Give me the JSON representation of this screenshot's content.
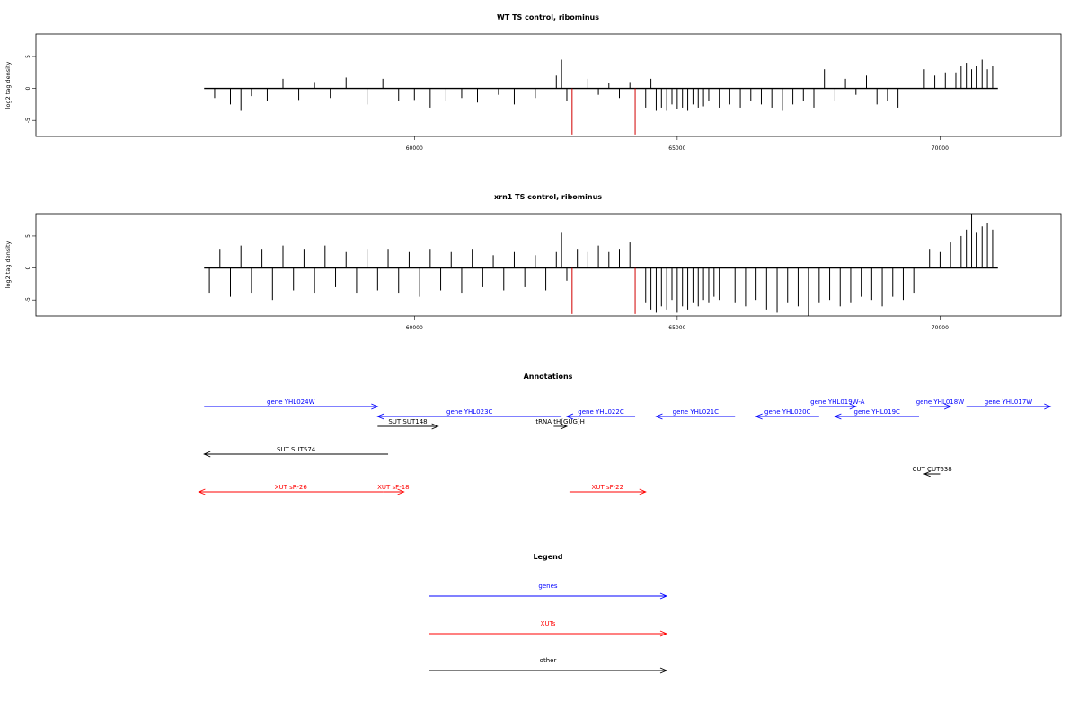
{
  "chart_data": [
    {
      "type": "bar",
      "title": "WT TS control, ribominus",
      "xlabel": "",
      "ylabel": "log2 tag density",
      "xlim": [
        52800,
        72300
      ],
      "ylim": [
        -7.5,
        8.5
      ],
      "xticks": [
        60000,
        65000,
        70000
      ],
      "yticks": [
        5,
        0,
        -5
      ],
      "ytick_labels": [
        "5",
        "0",
        "-5"
      ],
      "data_range": [
        56000,
        71100
      ],
      "marker_positions": [
        63000,
        64200
      ],
      "marker_color": "#d00000",
      "marker_ymin": -7.2,
      "series": {
        "positions": [
          56200,
          56500,
          56700,
          56900,
          57200,
          57500,
          57800,
          58100,
          58400,
          58700,
          59100,
          59400,
          59700,
          60000,
          60300,
          60600,
          60900,
          61200,
          61600,
          61900,
          62300,
          62700,
          62800,
          62900,
          63300,
          63500,
          63700,
          63900,
          64100,
          64400,
          64500,
          64600,
          64700,
          64800,
          64900,
          65000,
          65100,
          65200,
          65300,
          65400,
          65500,
          65600,
          65800,
          66000,
          66200,
          66400,
          66600,
          66800,
          67000,
          67200,
          67400,
          67600,
          67800,
          68000,
          68200,
          68400,
          68600,
          68800,
          69000,
          69200,
          69700,
          69900,
          70100,
          70300,
          70400,
          70500,
          70600,
          70700,
          70800,
          70900,
          71000
        ],
        "values": [
          -1.5,
          -2.5,
          -3.5,
          -1.2,
          -2.0,
          1.5,
          -1.8,
          1.0,
          -1.5,
          1.7,
          -2.5,
          1.5,
          -2.0,
          -1.8,
          -3.0,
          -2.0,
          -1.5,
          -2.2,
          -1.0,
          -2.5,
          -1.5,
          2.0,
          4.5,
          -2.0,
          1.5,
          -1.0,
          0.8,
          -1.5,
          1.0,
          -3.0,
          1.5,
          -3.5,
          -3.0,
          -3.5,
          -2.5,
          -3.2,
          -3.0,
          -3.5,
          -2.5,
          -3.0,
          -2.8,
          -2.0,
          -3.0,
          -2.5,
          -3.0,
          -2.0,
          -2.5,
          -3.0,
          -3.5,
          -2.5,
          -2.0,
          -3.0,
          3.0,
          -2.0,
          1.5,
          -1.0,
          2.0,
          -2.5,
          -2.0,
          -3.0,
          3.0,
          2.0,
          2.5,
          2.5,
          3.5,
          4.0,
          3.0,
          3.5,
          4.5,
          3.0,
          3.5
        ]
      }
    },
    {
      "type": "bar",
      "title": "xrn1 TS control, ribominus",
      "xlabel": "",
      "ylabel": "log2 tag density",
      "xlim": [
        52800,
        72300
      ],
      "ylim": [
        -7.5,
        8.5
      ],
      "xticks": [
        60000,
        65000,
        70000
      ],
      "yticks": [
        5,
        0,
        -5
      ],
      "ytick_labels": [
        "5",
        "0",
        "-5"
      ],
      "data_range": [
        56000,
        71100
      ],
      "marker_positions": [
        63000,
        64200
      ],
      "marker_color": "#d00000",
      "marker_ymin": -7.2,
      "series": {
        "positions": [
          56100,
          56300,
          56500,
          56700,
          56900,
          57100,
          57300,
          57500,
          57700,
          57900,
          58100,
          58300,
          58500,
          58700,
          58900,
          59100,
          59300,
          59500,
          59700,
          59900,
          60100,
          60300,
          60500,
          60700,
          60900,
          61100,
          61300,
          61500,
          61700,
          61900,
          62100,
          62300,
          62500,
          62700,
          62800,
          62900,
          63100,
          63300,
          63500,
          63700,
          63900,
          64100,
          64400,
          64500,
          64600,
          64700,
          64800,
          64900,
          65000,
          65100,
          65200,
          65300,
          65400,
          65500,
          65600,
          65700,
          65800,
          66100,
          66300,
          66500,
          66700,
          66900,
          67100,
          67300,
          67500,
          67700,
          67900,
          68100,
          68300,
          68500,
          68700,
          68900,
          69100,
          69300,
          69500,
          69800,
          70000,
          70200,
          70400,
          70500,
          70600,
          70700,
          70800,
          70900,
          71000
        ],
        "values": [
          -4.0,
          3.0,
          -4.5,
          3.5,
          -4.0,
          3.0,
          -5.0,
          3.5,
          -3.5,
          3.0,
          -4.0,
          3.5,
          -3.0,
          2.5,
          -4.0,
          3.0,
          -3.5,
          3.0,
          -4.0,
          2.5,
          -4.5,
          3.0,
          -3.5,
          2.5,
          -4.0,
          3.0,
          -3.0,
          2.0,
          -3.5,
          2.5,
          -3.0,
          2.0,
          -3.5,
          2.5,
          5.5,
          -2.0,
          3.0,
          2.5,
          3.5,
          2.5,
          3.0,
          4.0,
          -5.5,
          -6.5,
          -7.0,
          -6.0,
          -6.5,
          -5.0,
          -7.0,
          -6.0,
          -6.5,
          -5.5,
          -6.0,
          -5.0,
          -5.5,
          -4.5,
          -5.0,
          -5.5,
          -6.0,
          -5.0,
          -6.5,
          -7.0,
          -5.5,
          -6.0,
          -7.5,
          -5.5,
          -5.0,
          -6.0,
          -5.5,
          -4.5,
          -5.0,
          -6.0,
          -4.5,
          -5.0,
          -4.0,
          3.0,
          2.5,
          4.0,
          5.0,
          6.0,
          8.5,
          5.5,
          6.5,
          7.0,
          6.0
        ]
      }
    },
    {
      "type": "table",
      "title": "Annotations",
      "features": [
        {
          "label": "gene YHL024W",
          "kind": "gene",
          "start": 56000,
          "end": 59300,
          "strand": "+",
          "row": 0
        },
        {
          "label": "gene YHL023C",
          "kind": "gene",
          "start": 59300,
          "end": 62800,
          "strand": "-",
          "row": 1
        },
        {
          "label": "tRNA tH(GUG)H",
          "kind": "other",
          "start": 62650,
          "end": 62900,
          "strand": "+",
          "row": 2
        },
        {
          "label": "gene YHL022C",
          "kind": "gene",
          "start": 62900,
          "end": 64200,
          "strand": "-",
          "row": 1
        },
        {
          "label": "gene YHL021C",
          "kind": "gene",
          "start": 64600,
          "end": 66100,
          "strand": "-",
          "row": 1
        },
        {
          "label": "gene YHL020C",
          "kind": "gene",
          "start": 66500,
          "end": 67700,
          "strand": "-",
          "row": 1
        },
        {
          "label": "gene YHL019W-A",
          "kind": "gene",
          "start": 67700,
          "end": 68400,
          "strand": "+",
          "row": 0
        },
        {
          "label": "gene YHL019C",
          "kind": "gene",
          "start": 68000,
          "end": 69600,
          "strand": "-",
          "row": 1
        },
        {
          "label": "gene YHL018W",
          "kind": "gene",
          "start": 69800,
          "end": 70200,
          "strand": "+",
          "row": 0
        },
        {
          "label": "gene YHL017W",
          "kind": "gene",
          "start": 70500,
          "end": 72100,
          "strand": "+",
          "row": 0
        },
        {
          "label": "SUT SUT574",
          "kind": "other",
          "start": 56000,
          "end": 59500,
          "strand": "-",
          "row": 3
        },
        {
          "label": "SUT SUT148",
          "kind": "other",
          "start": 59300,
          "end": 60450,
          "strand": "+",
          "row": 2
        },
        {
          "label": "CUT CUT638",
          "kind": "other",
          "start": 69700,
          "end": 70000,
          "strand": "-",
          "row": 4
        },
        {
          "label": "XUT sR-26",
          "kind": "XUT",
          "start": 55900,
          "end": 59400,
          "strand": "-",
          "row": 5
        },
        {
          "label": "XUT sF-18",
          "kind": "XUT",
          "start": 59400,
          "end": 59800,
          "strand": "+",
          "row": 5
        },
        {
          "label": "XUT sF-22",
          "kind": "XUT",
          "start": 62950,
          "end": 64400,
          "strand": "+",
          "row": 5
        }
      ]
    },
    {
      "type": "table",
      "title": "Legend",
      "entries": [
        {
          "label": "genes",
          "color": "#0000ff"
        },
        {
          "label": "XUTs",
          "color": "#ff0000"
        },
        {
          "label": "other",
          "color": "#000000"
        }
      ]
    }
  ],
  "colors": {
    "gene": "#0000ff",
    "XUT": "#ff0000",
    "other": "#000000",
    "marker": "#d00000"
  }
}
